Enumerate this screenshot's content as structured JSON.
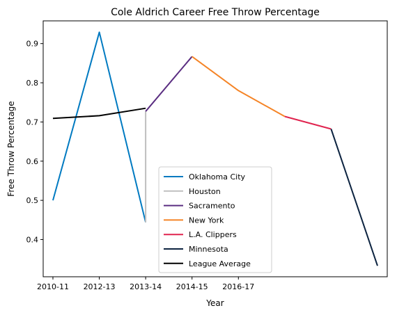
{
  "chart_data": {
    "type": "line",
    "title": "Cole Aldrich Career Free Throw Percentage",
    "xlabel": "Year",
    "ylabel": "Free Throw Percentage",
    "x_ticks": [
      "2010-11",
      "2012-13",
      "2013-14",
      "2014-15",
      "2016-17"
    ],
    "y_ticks": [
      0.4,
      0.5,
      0.6,
      0.7,
      0.8,
      0.9
    ],
    "y_tick_labels": [
      "0.4",
      "0.5",
      "0.6",
      "0.7",
      "0.8",
      "0.9"
    ],
    "xlim": [
      -0.21,
      7.21
    ],
    "ylim": [
      0.305,
      0.958
    ],
    "grid": false,
    "legend_position": "lower center",
    "series": [
      {
        "name": "Oklahoma City",
        "color": "#007ac1",
        "x": [
          0,
          1,
          2
        ],
        "y": [
          0.5,
          0.929,
          0.444
        ]
      },
      {
        "name": "Houston",
        "color": "#bfbfbf",
        "x": [
          2,
          2
        ],
        "y": [
          0.444,
          0.727
        ]
      },
      {
        "name": "Sacramento",
        "color": "#5a2d81",
        "x": [
          2,
          3
        ],
        "y": [
          0.727,
          0.867
        ]
      },
      {
        "name": "New York",
        "color": "#f58426",
        "x": [
          3,
          4,
          5
        ],
        "y": [
          0.867,
          0.78,
          0.714
        ]
      },
      {
        "name": "L.A. Clippers",
        "color": "#e0234e",
        "x": [
          5,
          6
        ],
        "y": [
          0.714,
          0.682
        ]
      },
      {
        "name": "Minnesota",
        "color": "#0c2340",
        "x": [
          6,
          7
        ],
        "y": [
          0.682,
          0.333
        ]
      },
      {
        "name": "League Average",
        "color": "#000000",
        "x": [
          0,
          1,
          2
        ],
        "y": [
          0.709,
          0.716,
          0.735
        ]
      }
    ]
  }
}
